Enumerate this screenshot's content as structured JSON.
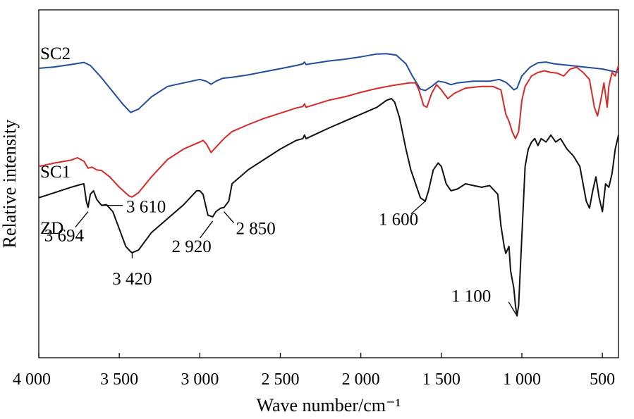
{
  "chart_data": {
    "type": "line",
    "xlabel": "Wave number/cm⁻¹",
    "ylabel": "Relative intensity",
    "xlim": [
      4000,
      400
    ],
    "x_reversed": true,
    "xticks": [
      4000,
      3500,
      3000,
      2500,
      2000,
      1500,
      1000,
      500
    ],
    "xtick_labels": [
      "4 000",
      "3 500",
      "3 000",
      "2 500",
      "2 000",
      "1 500",
      "1 000",
      "500"
    ],
    "y_ticks_shown": false,
    "grid": false,
    "legend": "none",
    "series": [
      {
        "name": "SC2",
        "color": "#1f4e9c",
        "points": [
          [
            4000,
            0.832
          ],
          [
            3900,
            0.836
          ],
          [
            3800,
            0.843
          ],
          [
            3720,
            0.849
          ],
          [
            3680,
            0.84
          ],
          [
            3620,
            0.81
          ],
          [
            3550,
            0.77
          ],
          [
            3480,
            0.73
          ],
          [
            3430,
            0.705
          ],
          [
            3380,
            0.715
          ],
          [
            3300,
            0.75
          ],
          [
            3200,
            0.78
          ],
          [
            3100,
            0.79
          ],
          [
            3000,
            0.8
          ],
          [
            2960,
            0.795
          ],
          [
            2930,
            0.786
          ],
          [
            2900,
            0.795
          ],
          [
            2860,
            0.803
          ],
          [
            2800,
            0.806
          ],
          [
            2700,
            0.813
          ],
          [
            2600,
            0.822
          ],
          [
            2500,
            0.831
          ],
          [
            2400,
            0.84
          ],
          [
            2360,
            0.845
          ],
          [
            2350,
            0.85
          ],
          [
            2340,
            0.843
          ],
          [
            2200,
            0.853
          ],
          [
            2100,
            0.858
          ],
          [
            2000,
            0.865
          ],
          [
            1900,
            0.873
          ],
          [
            1840,
            0.874
          ],
          [
            1780,
            0.87
          ],
          [
            1720,
            0.845
          ],
          [
            1680,
            0.81
          ],
          [
            1630,
            0.772
          ],
          [
            1600,
            0.768
          ],
          [
            1560,
            0.78
          ],
          [
            1520,
            0.795
          ],
          [
            1480,
            0.792
          ],
          [
            1440,
            0.785
          ],
          [
            1400,
            0.79
          ],
          [
            1300,
            0.795
          ],
          [
            1200,
            0.795
          ],
          [
            1140,
            0.8
          ],
          [
            1100,
            0.792
          ],
          [
            1070,
            0.78
          ],
          [
            1050,
            0.77
          ],
          [
            1030,
            0.775
          ],
          [
            1000,
            0.81
          ],
          [
            950,
            0.835
          ],
          [
            900,
            0.848
          ],
          [
            850,
            0.85
          ],
          [
            800,
            0.845
          ],
          [
            700,
            0.84
          ],
          [
            600,
            0.835
          ],
          [
            500,
            0.83
          ],
          [
            450,
            0.825
          ],
          [
            400,
            0.82
          ]
        ]
      },
      {
        "name": "SC1",
        "color": "#d62a2a",
        "points": [
          [
            4000,
            0.55
          ],
          [
            3900,
            0.56
          ],
          [
            3800,
            0.568
          ],
          [
            3760,
            0.575
          ],
          [
            3720,
            0.565
          ],
          [
            3694,
            0.545
          ],
          [
            3670,
            0.548
          ],
          [
            3640,
            0.54
          ],
          [
            3610,
            0.538
          ],
          [
            3560,
            0.52
          ],
          [
            3500,
            0.49
          ],
          [
            3440,
            0.465
          ],
          [
            3420,
            0.462
          ],
          [
            3380,
            0.475
          ],
          [
            3300,
            0.52
          ],
          [
            3200,
            0.57
          ],
          [
            3100,
            0.6
          ],
          [
            3000,
            0.62
          ],
          [
            2980,
            0.625
          ],
          [
            2960,
            0.615
          ],
          [
            2930,
            0.59
          ],
          [
            2900,
            0.605
          ],
          [
            2870,
            0.62
          ],
          [
            2850,
            0.63
          ],
          [
            2800,
            0.65
          ],
          [
            2700,
            0.67
          ],
          [
            2600,
            0.688
          ],
          [
            2500,
            0.703
          ],
          [
            2400,
            0.718
          ],
          [
            2360,
            0.722
          ],
          [
            2350,
            0.73
          ],
          [
            2340,
            0.72
          ],
          [
            2200,
            0.74
          ],
          [
            2100,
            0.75
          ],
          [
            2000,
            0.763
          ],
          [
            1900,
            0.774
          ],
          [
            1800,
            0.783
          ],
          [
            1700,
            0.79
          ],
          [
            1660,
            0.79
          ],
          [
            1640,
            0.77
          ],
          [
            1610,
            0.725
          ],
          [
            1590,
            0.72
          ],
          [
            1560,
            0.76
          ],
          [
            1530,
            0.785
          ],
          [
            1500,
            0.77
          ],
          [
            1460,
            0.745
          ],
          [
            1420,
            0.76
          ],
          [
            1350,
            0.775
          ],
          [
            1250,
            0.78
          ],
          [
            1180,
            0.78
          ],
          [
            1130,
            0.77
          ],
          [
            1100,
            0.7
          ],
          [
            1080,
            0.68
          ],
          [
            1060,
            0.65
          ],
          [
            1040,
            0.63
          ],
          [
            1020,
            0.65
          ],
          [
            1000,
            0.74
          ],
          [
            980,
            0.78
          ],
          [
            940,
            0.81
          ],
          [
            900,
            0.82
          ],
          [
            860,
            0.825
          ],
          [
            820,
            0.82
          ],
          [
            780,
            0.818
          ],
          [
            740,
            0.81
          ],
          [
            700,
            0.83
          ],
          [
            660,
            0.835
          ],
          [
            620,
            0.82
          ],
          [
            580,
            0.8
          ],
          [
            550,
            0.72
          ],
          [
            530,
            0.695
          ],
          [
            510,
            0.74
          ],
          [
            490,
            0.79
          ],
          [
            470,
            0.72
          ],
          [
            460,
            0.78
          ],
          [
            440,
            0.82
          ],
          [
            420,
            0.81
          ],
          [
            400,
            0.84
          ]
        ]
      },
      {
        "name": "ZD",
        "color": "#111111",
        "points": [
          [
            4000,
            0.46
          ],
          [
            3900,
            0.475
          ],
          [
            3800,
            0.49
          ],
          [
            3740,
            0.498
          ],
          [
            3720,
            0.5
          ],
          [
            3705,
            0.45
          ],
          [
            3694,
            0.432
          ],
          [
            3680,
            0.47
          ],
          [
            3660,
            0.48
          ],
          [
            3640,
            0.455
          ],
          [
            3610,
            0.438
          ],
          [
            3580,
            0.44
          ],
          [
            3540,
            0.42
          ],
          [
            3500,
            0.37
          ],
          [
            3460,
            0.32
          ],
          [
            3430,
            0.305
          ],
          [
            3420,
            0.302
          ],
          [
            3380,
            0.31
          ],
          [
            3300,
            0.36
          ],
          [
            3200,
            0.4
          ],
          [
            3100,
            0.44
          ],
          [
            3020,
            0.48
          ],
          [
            3000,
            0.48
          ],
          [
            2980,
            0.47
          ],
          [
            2950,
            0.41
          ],
          [
            2920,
            0.405
          ],
          [
            2900,
            0.42
          ],
          [
            2870,
            0.43
          ],
          [
            2850,
            0.432
          ],
          [
            2820,
            0.45
          ],
          [
            2800,
            0.5
          ],
          [
            2700,
            0.54
          ],
          [
            2600,
            0.57
          ],
          [
            2500,
            0.6
          ],
          [
            2400,
            0.625
          ],
          [
            2360,
            0.63
          ],
          [
            2350,
            0.64
          ],
          [
            2340,
            0.63
          ],
          [
            2200,
            0.66
          ],
          [
            2100,
            0.68
          ],
          [
            2000,
            0.7
          ],
          [
            1900,
            0.72
          ],
          [
            1840,
            0.74
          ],
          [
            1810,
            0.745
          ],
          [
            1790,
            0.735
          ],
          [
            1760,
            0.69
          ],
          [
            1720,
            0.6
          ],
          [
            1690,
            0.54
          ],
          [
            1660,
            0.5
          ],
          [
            1630,
            0.46
          ],
          [
            1600,
            0.45
          ],
          [
            1580,
            0.48
          ],
          [
            1550,
            0.54
          ],
          [
            1520,
            0.56
          ],
          [
            1500,
            0.55
          ],
          [
            1470,
            0.5
          ],
          [
            1440,
            0.48
          ],
          [
            1400,
            0.485
          ],
          [
            1350,
            0.5
          ],
          [
            1300,
            0.495
          ],
          [
            1250,
            0.49
          ],
          [
            1200,
            0.495
          ],
          [
            1150,
            0.47
          ],
          [
            1130,
            0.38
          ],
          [
            1110,
            0.32
          ],
          [
            1100,
            0.3
          ],
          [
            1080,
            0.32
          ],
          [
            1070,
            0.25
          ],
          [
            1050,
            0.2
          ],
          [
            1040,
            0.15
          ],
          [
            1030,
            0.12
          ],
          [
            1020,
            0.15
          ],
          [
            1000,
            0.35
          ],
          [
            980,
            0.55
          ],
          [
            960,
            0.6
          ],
          [
            940,
            0.62
          ],
          [
            920,
            0.63
          ],
          [
            900,
            0.61
          ],
          [
            880,
            0.63
          ],
          [
            850,
            0.62
          ],
          [
            820,
            0.64
          ],
          [
            790,
            0.62
          ],
          [
            760,
            0.63
          ],
          [
            720,
            0.6
          ],
          [
            680,
            0.58
          ],
          [
            640,
            0.55
          ],
          [
            600,
            0.45
          ],
          [
            580,
            0.43
          ],
          [
            560,
            0.48
          ],
          [
            540,
            0.52
          ],
          [
            520,
            0.46
          ],
          [
            500,
            0.42
          ],
          [
            480,
            0.5
          ],
          [
            460,
            0.49
          ],
          [
            440,
            0.53
          ],
          [
            420,
            0.6
          ],
          [
            400,
            0.64
          ]
        ]
      }
    ],
    "series_labels": [
      "SC2",
      "SC1",
      "ZD"
    ],
    "annotations": [
      {
        "text": "3 694",
        "x": 3694,
        "series": "ZD"
      },
      {
        "text": "3 610",
        "x": 3610,
        "series": "ZD"
      },
      {
        "text": "3 420",
        "x": 3420,
        "series": "ZD"
      },
      {
        "text": "2 920",
        "x": 2920,
        "series": "ZD"
      },
      {
        "text": "2 850",
        "x": 2850,
        "series": "ZD"
      },
      {
        "text": "1 600",
        "x": 1600,
        "series": "ZD"
      },
      {
        "text": "1 100",
        "x": 1030,
        "series": "ZD"
      }
    ]
  }
}
